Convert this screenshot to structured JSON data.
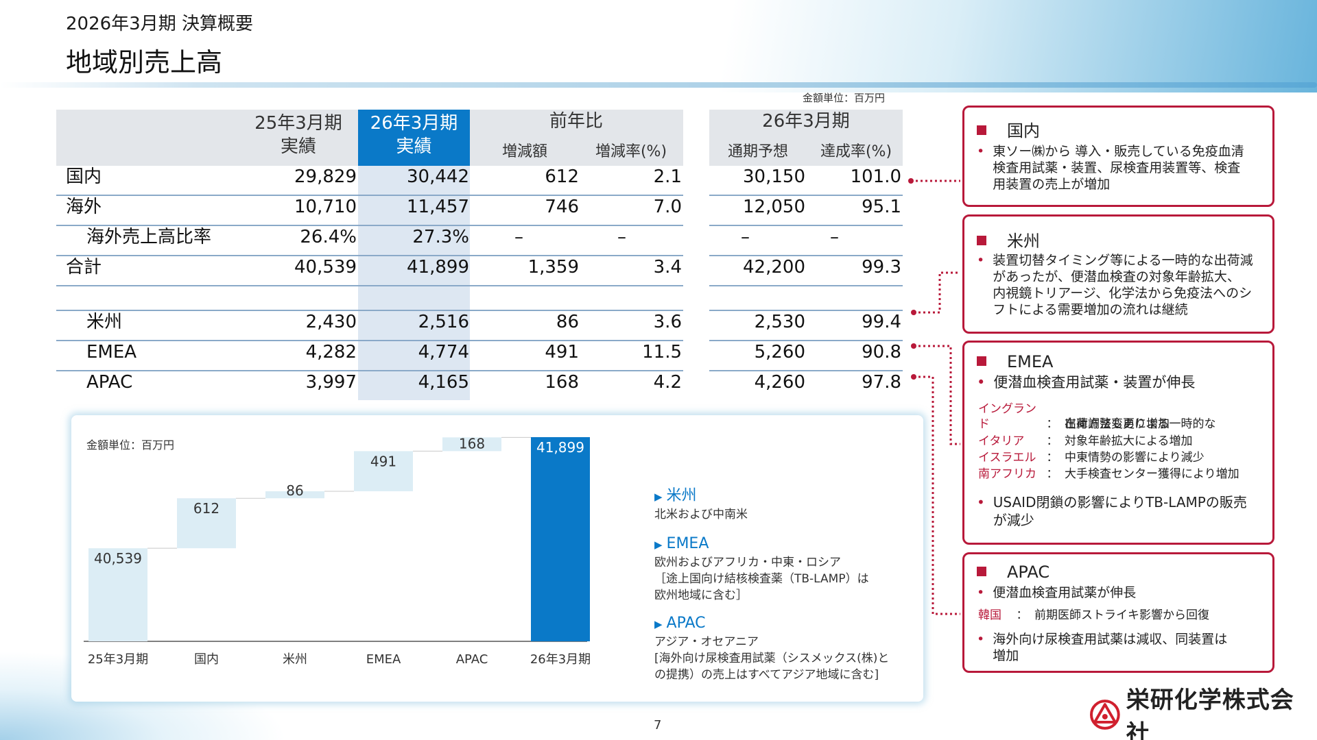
{
  "header": {
    "subtitle": "2026年3月期 決算概要",
    "title": "地域別売上高"
  },
  "unit_top": "金額単位：百万円",
  "table": {
    "head": {
      "prev_year_l1": "25年3月期",
      "prev_year_l2": "実績",
      "curr_year_l1": "26年3月期",
      "curr_year_l2": "実績",
      "yoy": "前年比",
      "yoy_diff": "増減額",
      "yoy_rate": "増減率(%)",
      "fc_group": "26年3月期",
      "fc_full": "通期予想",
      "fc_rate": "達成率(%)"
    },
    "rows": [
      {
        "label": "国内",
        "prev": "29,829",
        "curr": "30,442",
        "diff": "612",
        "rate": "2.1",
        "fc": "30,150",
        "ach": "101.0"
      },
      {
        "label": "海外",
        "prev": "10,710",
        "curr": "11,457",
        "diff": "746",
        "rate": "7.0",
        "fc": "12,050",
        "ach": "95.1"
      },
      {
        "label": "海外売上高比率",
        "prev": "26.4%",
        "curr": "27.3%",
        "diff": "–",
        "rate": "–",
        "fc": "–",
        "ach": "–"
      },
      {
        "label": "合計",
        "prev": "40,539",
        "curr": "41,899",
        "diff": "1,359",
        "rate": "3.4",
        "fc": "42,200",
        "ach": "99.3"
      },
      {
        "label": "米州",
        "prev": "2,430",
        "curr": "2,516",
        "diff": "86",
        "rate": "3.6",
        "fc": "2,530",
        "ach": "99.4"
      },
      {
        "label": "EMEA",
        "prev": "4,282",
        "curr": "4,774",
        "diff": "491",
        "rate": "11.5",
        "fc": "5,260",
        "ach": "90.8"
      },
      {
        "label": "APAC",
        "prev": "3,997",
        "curr": "4,165",
        "diff": "168",
        "rate": "4.2",
        "fc": "4,260",
        "ach": "97.8"
      }
    ]
  },
  "chart_unit": "金額単位：百万円",
  "chart_data": {
    "type": "bar",
    "subtype": "waterfall",
    "categories": [
      "25年3月期",
      "国内",
      "米州",
      "EMEA",
      "APAC",
      "26年3月期"
    ],
    "values": [
      40539,
      612,
      86,
      491,
      168,
      41899
    ],
    "labels": [
      "40,539",
      "612",
      "86",
      "491",
      "168",
      "41,899"
    ],
    "kinds": [
      "total",
      "delta",
      "delta",
      "delta",
      "delta",
      "total"
    ],
    "colors": {
      "base": "#dcedf5",
      "final": "#0a79c8"
    },
    "title": "",
    "xlabel": "",
    "ylabel": "",
    "grid": false
  },
  "legend": [
    {
      "title": "米州",
      "lines": [
        "北米および中南米"
      ]
    },
    {
      "title": "EMEA",
      "lines": [
        "欧州およびアフリカ・中東・ロシア",
        "［途上国向け結核検査薬（TB-LAMP）は",
        "欧州地域に含む］"
      ]
    },
    {
      "title": "APAC",
      "lines": [
        "アジア・オセアニア",
        "[海外向け尿検査用試薬（シスメックス(株)と",
        "の提携）の売上はすべてアジア地域に含む]"
      ]
    }
  ],
  "boxes": {
    "domestic": {
      "title": "国内",
      "bullet_lines": [
        "東ソー㈱から 導入・販売している免疫血清",
        "検査用試薬・装置、尿検査用装置等、検査",
        "用装置の売上が増加"
      ]
    },
    "americas": {
      "title": "米州",
      "bullet_lines": [
        "装置切替タイミング等による一時的な出荷減",
        "があったが、便潜血検査の対象年齢拡大、",
        "内視鏡トリアージ、化学法から免疫法へのシ",
        "フトによる需要増加の流れは継続"
      ]
    },
    "emea": {
      "title": "EMEA",
      "bullet1": "便潜血検査用試薬・装置が伸長",
      "sub": [
        {
          "k": "イングランド",
          "c": "：",
          "v1": "出荷方法変更による一時的な",
          "v2": "在庫調整もあり増加"
        },
        {
          "k": "イタリア",
          "c": "：",
          "v1": "対象年齢拡大による増加"
        },
        {
          "k": "イスラエル",
          "c": "：",
          "v1": "中東情勢の影響により減少"
        },
        {
          "k": "南アフリカ",
          "c": "：",
          "v1": "大手検査センター獲得により増加"
        }
      ],
      "bullet2_lines": [
        "USAID閉鎖の影響によりTB-LAMPの販売",
        "が減少"
      ]
    },
    "apac": {
      "title": "APAC",
      "bullet1": "便潜血検査用試薬が伸長",
      "sub": {
        "k": "韓国",
        "c": "：",
        "v1": "前期医師ストライキ影響から回復"
      },
      "bullet2_lines": [
        "海外向け尿検査用試薬は減収、同装置は",
        "増加"
      ]
    }
  },
  "bullet_mark": "•",
  "page_number": "7",
  "company": "栄研化学株式会社",
  "logo_icon": "eiken-logo-icon",
  "accent_color": "#b8193a",
  "blue_color": "#0a79c8"
}
